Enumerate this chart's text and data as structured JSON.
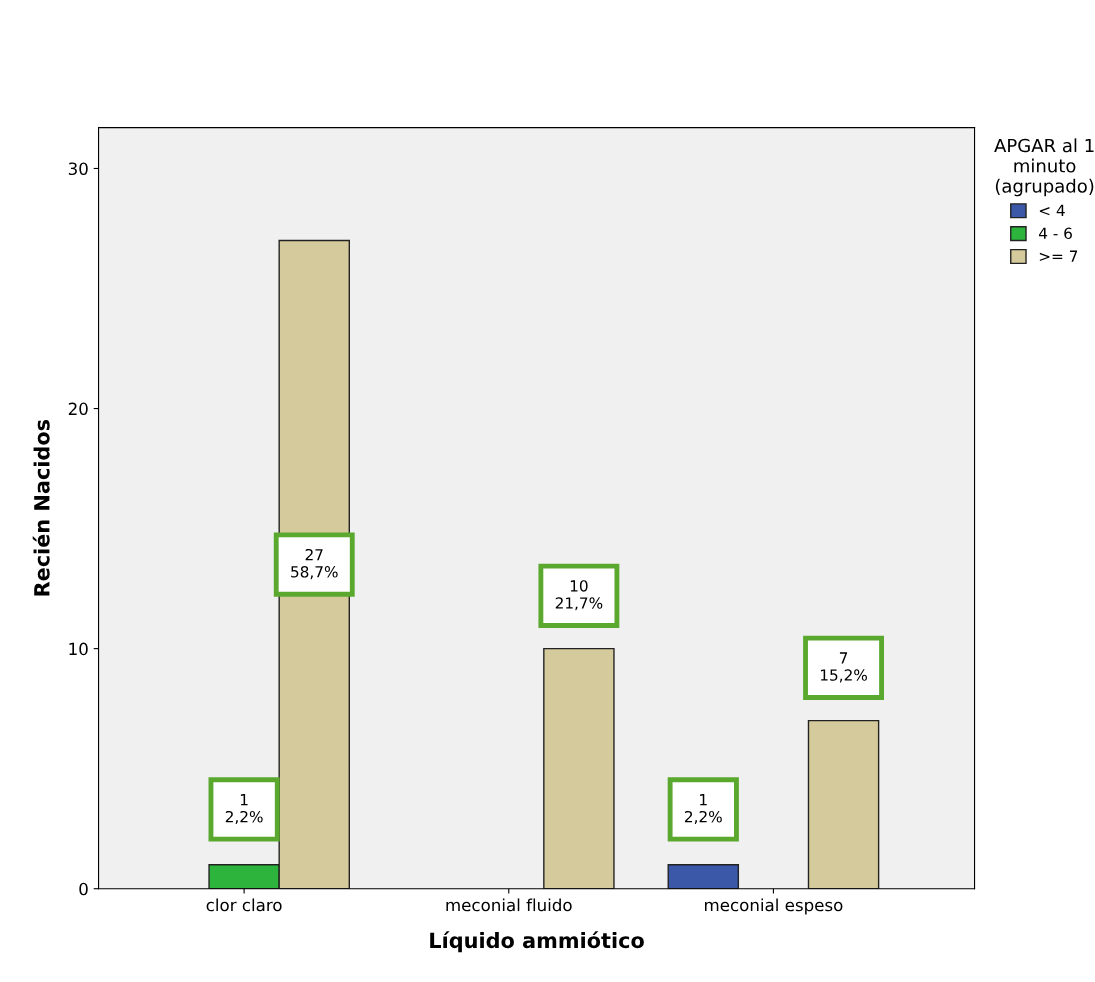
{
  "chart_data": {
    "type": "bar",
    "xlabel": "Líquido ammiótico",
    "ylabel": "Recién Nacidos",
    "legend_title": "APGAR al 1\nminuto\n(agrupado)",
    "categories": [
      "clor claro",
      "meconial fluido",
      "meconial espeso"
    ],
    "series": [
      {
        "name": "< 4",
        "color": "#3a57a8",
        "values": [
          null,
          null,
          1
        ],
        "value_labels": [
          null,
          null,
          "1\n2,2%"
        ]
      },
      {
        "name": "4 - 6",
        "color": "#2db43c",
        "values": [
          1,
          null,
          null
        ],
        "value_labels": [
          "1\n2,2%",
          null,
          null
        ]
      },
      {
        "name": ">= 7",
        "color": "#d5ca9b",
        "values": [
          27,
          10,
          7
        ],
        "value_labels": [
          "27\n58,7%",
          "10\n21,7%",
          "7\n15,2%"
        ]
      }
    ],
    "ylim": [
      0,
      31.7
    ],
    "yticks": [
      0,
      10,
      20,
      30
    ],
    "grid": false,
    "legend": "right"
  }
}
